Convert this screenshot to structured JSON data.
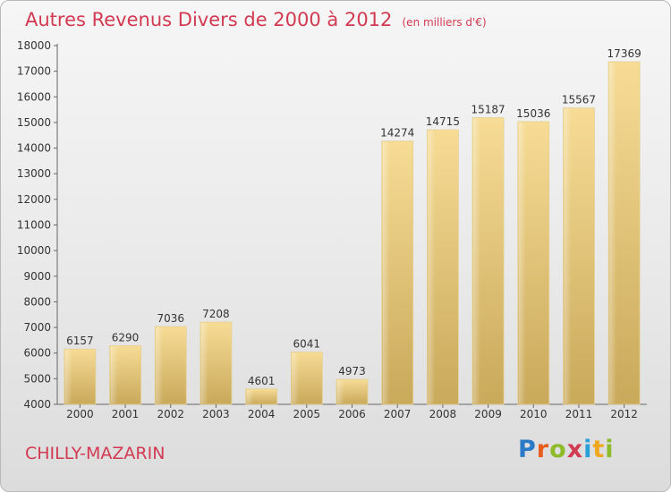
{
  "header": {
    "title": "Autres Revenus Divers de 2000 à 2012",
    "unit": "(en milliers d'€)"
  },
  "footer": {
    "commune": "CHILLY-MAZARIN",
    "logo": [
      "P",
      "r",
      "o",
      "x",
      "i",
      "t",
      "i"
    ],
    "logo_colors": [
      "#2a7ac8",
      "#e85c1e",
      "#8dbb2a",
      "#d23a52",
      "#2aa0d8",
      "#f0a91e",
      "#8dbb2a"
    ]
  },
  "colors": {
    "title": "#d23a52",
    "bar_light": "#f7dc96",
    "bar_dark": "#c9a95a"
  },
  "chart_data": {
    "type": "bar",
    "title": "Autres Revenus Divers de 2000 à 2012",
    "xlabel": "",
    "ylabel": "",
    "categories": [
      "2000",
      "2001",
      "2002",
      "2003",
      "2004",
      "2005",
      "2006",
      "2007",
      "2008",
      "2009",
      "2010",
      "2011",
      "2012"
    ],
    "values": [
      6157,
      6290,
      7036,
      7208,
      4601,
      6041,
      4973,
      14274,
      14715,
      15187,
      15036,
      15567,
      17369
    ],
    "ylim": [
      4000,
      18000
    ],
    "yticks": [
      4000,
      5000,
      6000,
      7000,
      8000,
      9000,
      10000,
      11000,
      12000,
      13000,
      14000,
      15000,
      16000,
      17000,
      18000
    ],
    "grid": false,
    "legend": "none"
  }
}
